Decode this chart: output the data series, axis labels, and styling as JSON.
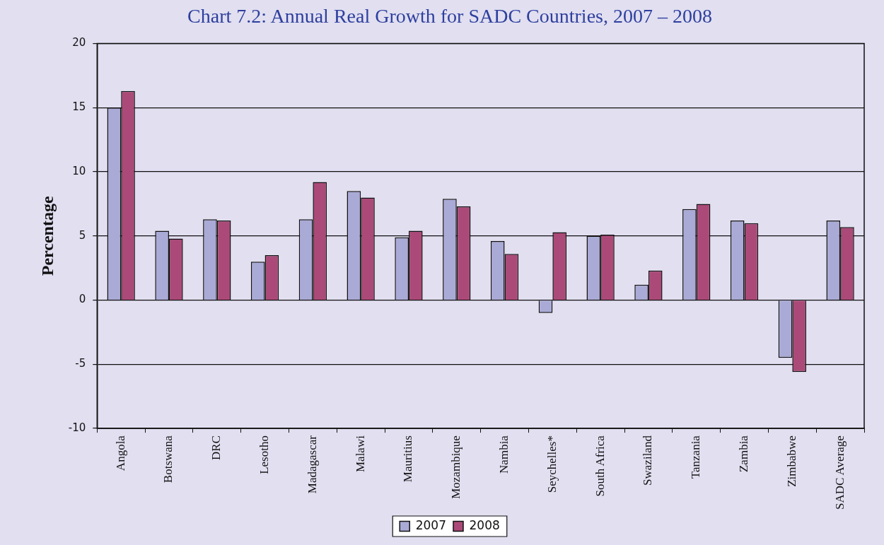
{
  "chart_data": {
    "type": "bar",
    "title": "Chart 7.2: Annual Real Growth for SADC Countries, 2007 – 2008",
    "ylabel": "Percentage",
    "categories": [
      "Angola",
      "Botswana",
      "DRC",
      "Lesotho",
      "Madagascar",
      "Malawi",
      "Mauritius",
      "Mozambique",
      "Nambia",
      "Seychelles*",
      "South Africa",
      "Swaziland",
      "Tanzania",
      "Zambia",
      "Zimbabwe",
      "SADC Average"
    ],
    "series": [
      {
        "name": "2007",
        "color": "#aaaad6",
        "values": [
          15.0,
          5.4,
          6.3,
          3.0,
          6.3,
          8.5,
          4.9,
          7.9,
          4.6,
          -1.0,
          5.0,
          1.2,
          7.1,
          6.2,
          -4.5,
          6.2
        ]
      },
      {
        "name": "2008",
        "color": "#ab4a78",
        "values": [
          16.3,
          4.8,
          6.2,
          3.5,
          9.2,
          8.0,
          5.4,
          7.3,
          3.6,
          5.3,
          5.1,
          2.3,
          7.5,
          6.0,
          -5.6,
          5.7
        ]
      }
    ],
    "ylim": [
      -10,
      20
    ],
    "yticks": [
      -10,
      -5,
      0,
      5,
      10,
      15,
      20
    ],
    "grid": "y",
    "legend": "bottom"
  }
}
